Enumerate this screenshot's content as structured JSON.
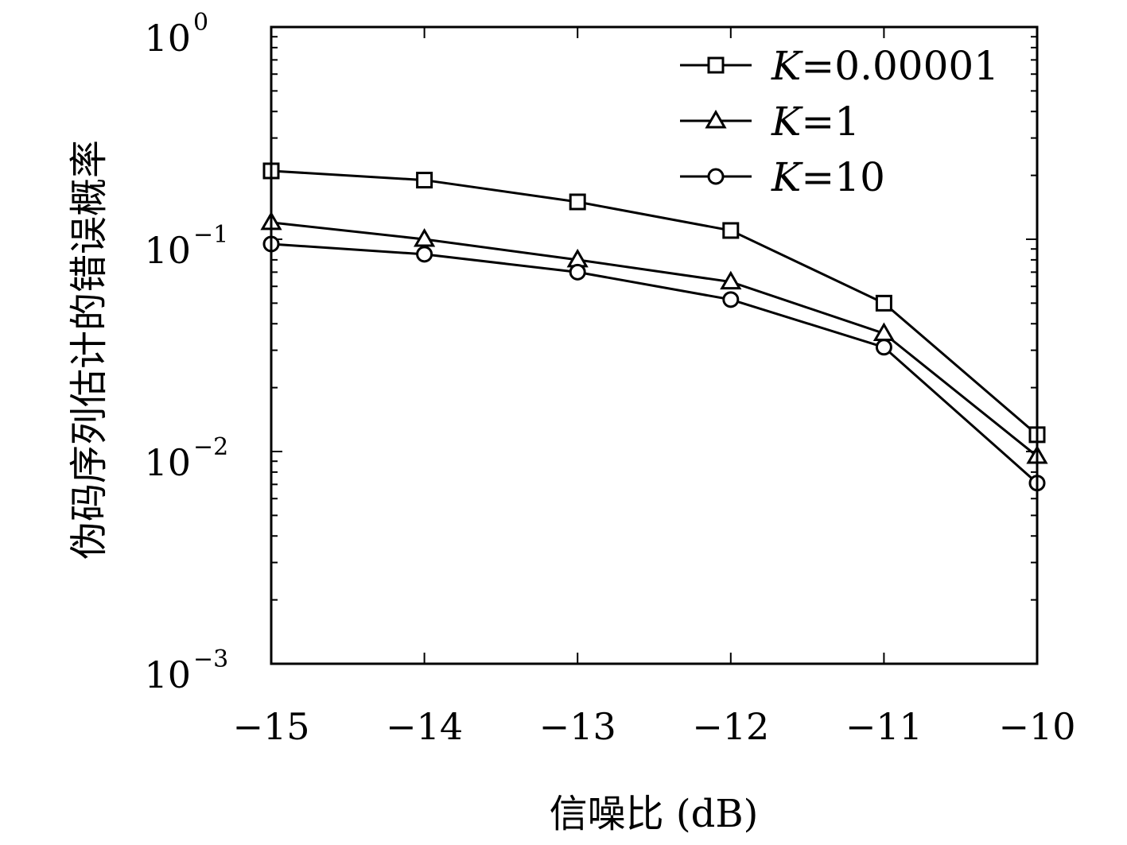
{
  "chart_data": {
    "type": "line",
    "xlabel": "信噪比 (dB)",
    "ylabel": "伪码序列估计的错误概率",
    "x": [
      -15,
      -14,
      -13,
      -12,
      -11,
      -10
    ],
    "x_tick_labels": [
      "−15",
      "−14",
      "−13",
      "−12",
      "−11",
      "−10"
    ],
    "xlim": [
      -15,
      -10
    ],
    "ylim": [
      0.001,
      1
    ],
    "y_scale": "log",
    "y_ticks": [
      {
        "base": "10",
        "exp": "0"
      },
      {
        "base": "10",
        "exp": "−1"
      },
      {
        "base": "10",
        "exp": "−2"
      },
      {
        "base": "10",
        "exp": "−3"
      }
    ],
    "grid": false,
    "legend_position": "top-right",
    "series": [
      {
        "name_var": "K",
        "name_eq": "=",
        "name_val": "0.00001",
        "marker": "square",
        "values": [
          0.21,
          0.19,
          0.15,
          0.11,
          0.05,
          0.012
        ]
      },
      {
        "name_var": "K",
        "name_eq": "=",
        "name_val": "1",
        "marker": "triangle",
        "values": [
          0.12,
          0.1,
          0.08,
          0.063,
          0.036,
          0.0095
        ]
      },
      {
        "name_var": "K",
        "name_eq": "=",
        "name_val": "10",
        "marker": "circle",
        "values": [
          0.095,
          0.085,
          0.07,
          0.052,
          0.031,
          0.0071
        ]
      }
    ],
    "line_color": "#000000"
  }
}
